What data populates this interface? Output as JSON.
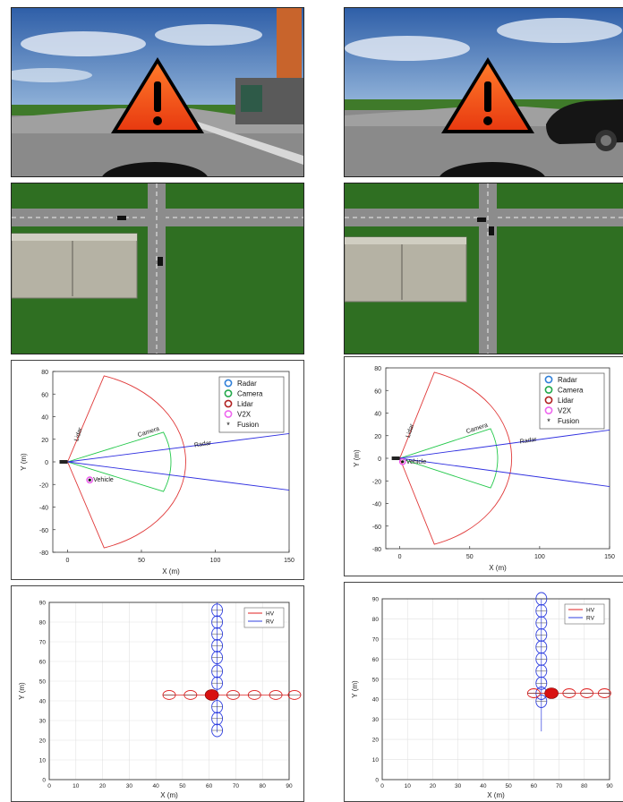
{
  "sensor_charts": [
    {
      "legend": [
        "Radar",
        "Camera",
        "Lidar",
        "V2X",
        "Fusion"
      ],
      "fov_labels": {
        "lidar": "Lidar",
        "camera": "Camera",
        "radar": "Radar"
      },
      "object_label": "Vehicle",
      "xlabel": "X (m)",
      "ylabel": "Y (m)",
      "xticks": [
        "0",
        "50",
        "100",
        "150"
      ],
      "yticks": [
        "80",
        "60",
        "40",
        "20",
        "0",
        "-20",
        "-40",
        "-60",
        "-80"
      ],
      "xlim": [
        -10,
        150
      ],
      "ylim": [
        -80,
        80
      ],
      "object": {
        "x": 15,
        "y": -16
      }
    },
    {
      "legend": [
        "Radar",
        "Camera",
        "Lidar",
        "V2X",
        "Fusion"
      ],
      "fov_labels": {
        "lidar": "Lidar",
        "camera": "Camera",
        "radar": "Radar"
      },
      "object_label": "Vehicle",
      "xlabel": "X (m)",
      "ylabel": "Y (m)",
      "xticks": [
        "0",
        "50",
        "100",
        "150"
      ],
      "yticks": [
        "80",
        "60",
        "40",
        "20",
        "0",
        "-20",
        "-40",
        "-60",
        "-80"
      ],
      "xlim": [
        -10,
        150
      ],
      "ylim": [
        -80,
        80
      ],
      "object": {
        "x": 2,
        "y": -3
      }
    }
  ],
  "trajectory_charts": [
    {
      "legend": [
        "HV",
        "RV"
      ],
      "xlabel": "X (m)",
      "ylabel": "Y (m)",
      "xticks": [
        "0",
        "10",
        "20",
        "30",
        "40",
        "50",
        "60",
        "70",
        "80",
        "90"
      ],
      "yticks": [
        "90",
        "80",
        "70",
        "60",
        "50",
        "40",
        "30",
        "20",
        "10",
        "0"
      ],
      "xlim": [
        0,
        90
      ],
      "ylim": [
        0,
        90
      ],
      "hv_x": [
        45,
        53,
        69,
        77,
        85,
        92
      ],
      "hv_y": 43,
      "rv_x": 63,
      "rv_y": [
        86,
        80,
        74,
        68,
        62,
        55,
        49,
        37,
        31,
        25
      ],
      "hv_current": {
        "x": 61,
        "y": 43
      },
      "hv_color": "#e02020",
      "rv_color": "#3040e0"
    },
    {
      "legend": [
        "HV",
        "RV"
      ],
      "xlabel": "X (m)",
      "ylabel": "Y (m)",
      "xticks": [
        "0",
        "10",
        "20",
        "30",
        "40",
        "50",
        "60",
        "70",
        "80",
        "90"
      ],
      "yticks": [
        "90",
        "80",
        "70",
        "60",
        "50",
        "40",
        "30",
        "20",
        "10",
        "0"
      ],
      "xlim": [
        0,
        90
      ],
      "ylim": [
        0,
        90
      ],
      "hv_x": [
        60,
        74,
        81,
        88
      ],
      "hv_y": 43,
      "rv_x": 63,
      "rv_y": [
        90,
        84,
        78,
        72,
        66,
        60,
        54,
        48,
        43,
        39
      ],
      "hv_current": {
        "x": 67,
        "y": 43
      },
      "hv_color": "#e02020",
      "rv_color": "#3040e0"
    }
  ]
}
